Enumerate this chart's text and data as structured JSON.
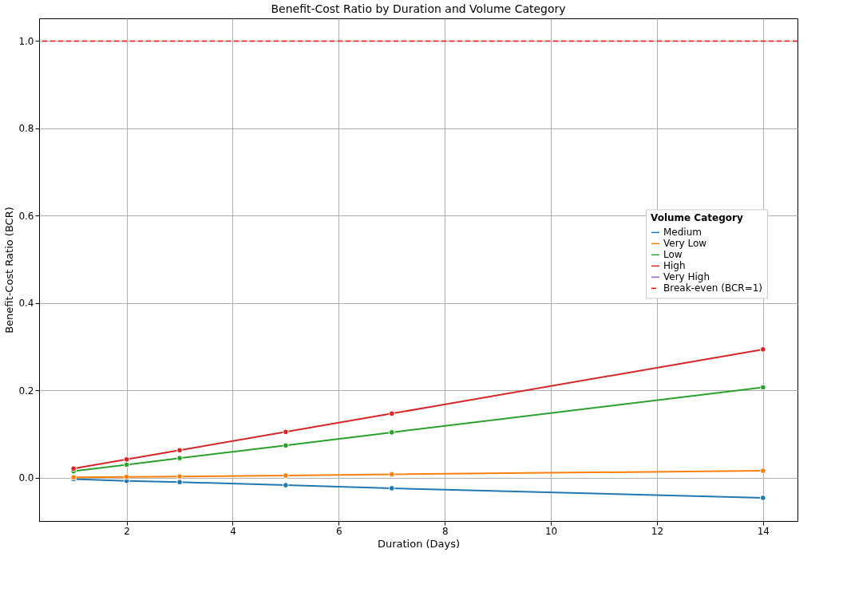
{
  "chart_data": {
    "type": "line",
    "title": "Benefit-Cost Ratio by Duration and Volume Category",
    "xlabel": "Duration (Days)",
    "ylabel": "Benefit-Cost Ratio (BCR)",
    "legend_title": "Volume Category",
    "legend": "right",
    "grid": true,
    "marker": "circle",
    "line_style": "solid",
    "x": [
      1,
      2,
      3,
      5,
      7,
      14
    ],
    "xlim": [
      0.35,
      14.65
    ],
    "xticks": [
      2,
      4,
      6,
      8,
      10,
      12,
      14
    ],
    "ylim": [
      -0.099,
      1.052
    ],
    "yticks": [
      {
        "value": 0,
        "label": "0.0"
      },
      {
        "value": 0.2,
        "label": "0.2"
      },
      {
        "value": 0.4,
        "label": "0.4"
      },
      {
        "value": 0.6,
        "label": "0.6"
      },
      {
        "value": 0.8,
        "label": "0.8"
      },
      {
        "value": 1,
        "label": "1.0"
      }
    ],
    "series": [
      {
        "name": "Medium",
        "color": "#1f77b4",
        "values": [
          -0.003,
          -0.007,
          -0.01,
          -0.017,
          -0.024,
          -0.046
        ]
      },
      {
        "name": "Very Low",
        "color": "#ff7f0e",
        "values": [
          0.001,
          0.002,
          0.003,
          0.005,
          0.008,
          0.016
        ]
      },
      {
        "name": "Low",
        "color": "#2ca02c",
        "values": [
          0.015,
          0.03,
          0.045,
          0.074,
          0.104,
          0.207
        ]
      },
      {
        "name": "High",
        "color": "#d62728",
        "values": [
          0.021,
          0.042,
          0.063,
          0.105,
          0.147,
          0.294
        ]
      },
      {
        "name": "Very High",
        "color": "#9467bd",
        "values": [
          null,
          null,
          null,
          null,
          null,
          null
        ]
      }
    ],
    "ref_lines": [
      {
        "axis": "y",
        "value": 1.0,
        "label": "Break-even (BCR=1)",
        "color": "#ff0000",
        "line_style": "dashed"
      }
    ]
  }
}
